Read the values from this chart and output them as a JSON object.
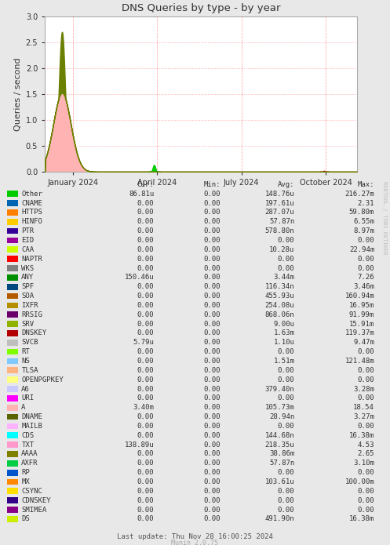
{
  "title": "DNS Queries by type - by year",
  "ylabel": "Queries / second",
  "ylim": [
    0,
    3.0
  ],
  "yticks": [
    0.0,
    0.5,
    1.0,
    1.5,
    2.0,
    2.5,
    3.0
  ],
  "bg_color": "#e8e8e8",
  "plot_bg_color": "#ffffff",
  "grid_color": "#ff9999",
  "watermark": "RRDTOOL / TOBI OETIKER",
  "footer": "Last update: Thu Nov 28 16:00:25 2024",
  "munin_version": "Munin 2.0.75",
  "legend_entries": [
    {
      "label": "Other",
      "color": "#00cc00",
      "cur": "86.81u",
      "min": "0.00",
      "avg": "148.76u",
      "max": "216.27m"
    },
    {
      "label": "CNAME",
      "color": "#0066b3",
      "cur": "0.00",
      "min": "0.00",
      "avg": "197.61u",
      "max": "2.31"
    },
    {
      "label": "HTTPS",
      "color": "#ff8000",
      "cur": "0.00",
      "min": "0.00",
      "avg": "287.07u",
      "max": "59.80m"
    },
    {
      "label": "HINFO",
      "color": "#ffcc00",
      "cur": "0.00",
      "min": "0.00",
      "avg": "57.87n",
      "max": "6.55m"
    },
    {
      "label": "PTR",
      "color": "#330099",
      "cur": "0.00",
      "min": "0.00",
      "avg": "578.80n",
      "max": "8.97m"
    },
    {
      "label": "EID",
      "color": "#990099",
      "cur": "0.00",
      "min": "0.00",
      "avg": "0.00",
      "max": "0.00"
    },
    {
      "label": "CAA",
      "color": "#ccff00",
      "cur": "0.00",
      "min": "0.00",
      "avg": "10.28u",
      "max": "22.94m"
    },
    {
      "label": "NAPTR",
      "color": "#ff0000",
      "cur": "0.00",
      "min": "0.00",
      "avg": "0.00",
      "max": "0.00"
    },
    {
      "label": "WKS",
      "color": "#808080",
      "cur": "0.00",
      "min": "0.00",
      "avg": "0.00",
      "max": "0.00"
    },
    {
      "label": "ANY",
      "color": "#008f00",
      "cur": "150.46u",
      "min": "0.00",
      "avg": "3.44m",
      "max": "7.26"
    },
    {
      "label": "SPF",
      "color": "#00487d",
      "cur": "0.00",
      "min": "0.00",
      "avg": "116.34n",
      "max": "3.46m"
    },
    {
      "label": "SOA",
      "color": "#b35a00",
      "cur": "0.00",
      "min": "0.00",
      "avg": "455.93u",
      "max": "160.94m"
    },
    {
      "label": "IXFR",
      "color": "#b38f00",
      "cur": "0.00",
      "min": "0.00",
      "avg": "254.08u",
      "max": "16.95m"
    },
    {
      "label": "RRSIG",
      "color": "#6b006b",
      "cur": "0.00",
      "min": "0.00",
      "avg": "868.06n",
      "max": "91.99m"
    },
    {
      "label": "SRV",
      "color": "#8fb300",
      "cur": "0.00",
      "min": "0.00",
      "avg": "9.00u",
      "max": "15.91m"
    },
    {
      "label": "DNSKEY",
      "color": "#b30000",
      "cur": "0.00",
      "min": "0.00",
      "avg": "1.63m",
      "max": "119.37m"
    },
    {
      "label": "SVCB",
      "color": "#bebebe",
      "cur": "5.79u",
      "min": "0.00",
      "avg": "1.10u",
      "max": "9.47m"
    },
    {
      "label": "RT",
      "color": "#80ff00",
      "cur": "0.00",
      "min": "0.00",
      "avg": "0.00",
      "max": "0.00"
    },
    {
      "label": "NS",
      "color": "#80c9ff",
      "cur": "0.00",
      "min": "0.00",
      "avg": "1.51m",
      "max": "121.48m"
    },
    {
      "label": "TLSA",
      "color": "#ffb380",
      "cur": "0.00",
      "min": "0.00",
      "avg": "0.00",
      "max": "0.00"
    },
    {
      "label": "OPENPGPKEY",
      "color": "#ffff80",
      "cur": "0.00",
      "min": "0.00",
      "avg": "0.00",
      "max": "0.00"
    },
    {
      "label": "A6",
      "color": "#c9c9ff",
      "cur": "0.00",
      "min": "0.00",
      "avg": "379.40n",
      "max": "3.28m"
    },
    {
      "label": "URI",
      "color": "#ff00ff",
      "cur": "0.00",
      "min": "0.00",
      "avg": "0.00",
      "max": "0.00"
    },
    {
      "label": "A",
      "color": "#ffb3b3",
      "cur": "3.40m",
      "min": "0.00",
      "avg": "105.73m",
      "max": "18.54"
    },
    {
      "label": "DNAME",
      "color": "#596600",
      "cur": "0.00",
      "min": "0.00",
      "avg": "28.94n",
      "max": "3.27m"
    },
    {
      "label": "MAILB",
      "color": "#ffb3ff",
      "cur": "0.00",
      "min": "0.00",
      "avg": "0.00",
      "max": "0.00"
    },
    {
      "label": "CDS",
      "color": "#00ffff",
      "cur": "0.00",
      "min": "0.00",
      "avg": "144.68n",
      "max": "16.38m"
    },
    {
      "label": "TXT",
      "color": "#ff99cc",
      "cur": "138.89u",
      "min": "0.00",
      "avg": "218.35u",
      "max": "4.53"
    },
    {
      "label": "AAAA",
      "color": "#808000",
      "cur": "0.00",
      "min": "0.00",
      "avg": "38.86m",
      "max": "2.65"
    },
    {
      "label": "AXFR",
      "color": "#00cc44",
      "cur": "0.00",
      "min": "0.00",
      "avg": "57.87n",
      "max": "3.10m"
    },
    {
      "label": "RP",
      "color": "#0055cc",
      "cur": "0.00",
      "min": "0.00",
      "avg": "0.00",
      "max": "0.00"
    },
    {
      "label": "MX",
      "color": "#ff8800",
      "cur": "0.00",
      "min": "0.00",
      "avg": "103.61u",
      "max": "100.00m"
    },
    {
      "label": "CSYNC",
      "color": "#ffdd00",
      "cur": "0.00",
      "min": "0.00",
      "avg": "0.00",
      "max": "0.00"
    },
    {
      "label": "CDNSKEY",
      "color": "#330088",
      "cur": "0.00",
      "min": "0.00",
      "avg": "0.00",
      "max": "0.00"
    },
    {
      "label": "SMIMEA",
      "color": "#880088",
      "cur": "0.00",
      "min": "0.00",
      "avg": "0.00",
      "max": "0.00"
    },
    {
      "label": "DS",
      "color": "#ccee00",
      "cur": "0.00",
      "min": "0.00",
      "avg": "491.90n",
      "max": "16.38m"
    }
  ],
  "x_labels": [
    "January 2024",
    "April 2024",
    "July 2024",
    "October 2024"
  ],
  "col_headers": [
    "Cur:",
    "Min:",
    "Avg:",
    "Max:"
  ]
}
